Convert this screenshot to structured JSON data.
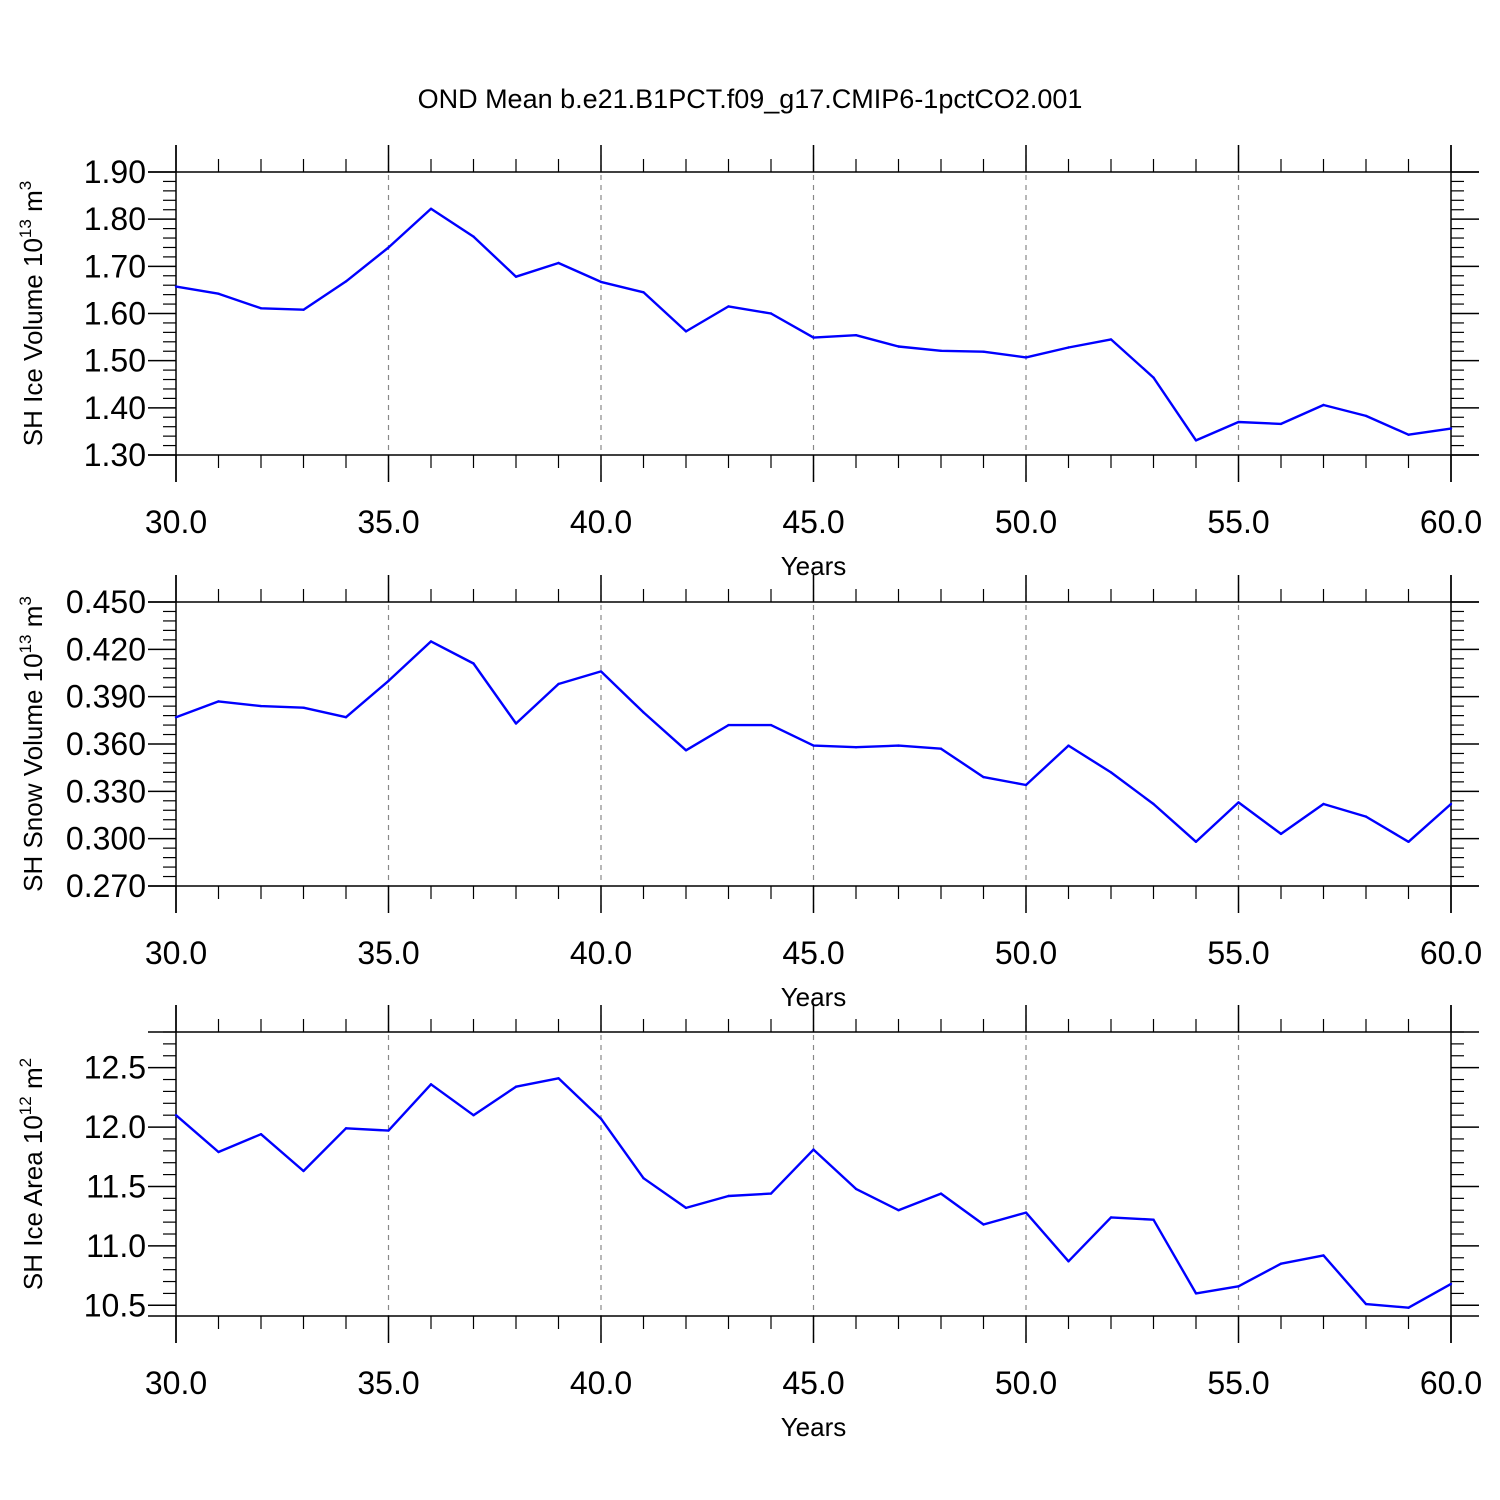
{
  "figure_title": "OND Mean b.e21.B1PCT.f09_g17.CMIP6-1pctCO2.001",
  "colors": {
    "line": "#0000ff",
    "axis": "#000000",
    "grid": "#888888",
    "background": "#ffffff"
  },
  "chart_data": [
    {
      "type": "line",
      "xlabel": "Years",
      "ylabel": {
        "prefix": "SH Ice Volume 10",
        "exp": "13",
        "unit": " m",
        "unit_exp": "3"
      },
      "xlim": [
        30,
        60
      ],
      "ylim": [
        1.3,
        1.9
      ],
      "xticks": [
        30,
        35,
        40,
        45,
        50,
        55,
        60
      ],
      "xtick_labels": [
        "30.0",
        "35.0",
        "40.0",
        "45.0",
        "50.0",
        "55.0",
        "60.0"
      ],
      "yticks": [
        1.3,
        1.4,
        1.5,
        1.6,
        1.7,
        1.8,
        1.9
      ],
      "ytick_labels": [
        "1.30",
        "1.40",
        "1.50",
        "1.60",
        "1.70",
        "1.80",
        "1.90"
      ],
      "grid": "vertical dashed at major x ticks",
      "series": [
        {
          "x": [
            30,
            31,
            32,
            33,
            34,
            35,
            36,
            37,
            38,
            39,
            40,
            41,
            42,
            43,
            44,
            45,
            46,
            47,
            48,
            49,
            50,
            51,
            52,
            53,
            54,
            55,
            56,
            57,
            58,
            59,
            60
          ],
          "values": [
            1.657,
            1.642,
            1.611,
            1.608,
            1.668,
            1.74,
            1.822,
            1.763,
            1.678,
            1.707,
            1.667,
            1.645,
            1.562,
            1.615,
            1.6,
            1.549,
            1.554,
            1.53,
            1.521,
            1.519,
            1.507,
            1.528,
            1.545,
            1.464,
            1.331,
            1.37,
            1.366,
            1.406,
            1.383,
            1.343,
            1.356
          ]
        }
      ]
    },
    {
      "type": "line",
      "xlabel": "Years",
      "ylabel": {
        "prefix": "SH Snow Volume 10",
        "exp": "13",
        "unit": " m",
        "unit_exp": "3"
      },
      "xlim": [
        30,
        60
      ],
      "ylim": [
        0.27,
        0.45
      ],
      "xticks": [
        30,
        35,
        40,
        45,
        50,
        55,
        60
      ],
      "xtick_labels": [
        "30.0",
        "35.0",
        "40.0",
        "45.0",
        "50.0",
        "55.0",
        "60.0"
      ],
      "yticks": [
        0.27,
        0.3,
        0.33,
        0.36,
        0.39,
        0.42,
        0.45
      ],
      "ytick_labels": [
        "0.270",
        "0.300",
        "0.330",
        "0.360",
        "0.390",
        "0.420",
        "0.450"
      ],
      "grid": "vertical dashed at major x ticks",
      "series": [
        {
          "x": [
            30,
            31,
            32,
            33,
            34,
            35,
            36,
            37,
            38,
            39,
            40,
            41,
            42,
            43,
            44,
            45,
            46,
            47,
            48,
            49,
            50,
            51,
            52,
            53,
            54,
            55,
            56,
            57,
            58,
            59,
            60
          ],
          "values": [
            0.377,
            0.387,
            0.384,
            0.383,
            0.377,
            0.4,
            0.425,
            0.411,
            0.373,
            0.398,
            0.406,
            0.38,
            0.356,
            0.372,
            0.372,
            0.359,
            0.358,
            0.359,
            0.357,
            0.339,
            0.334,
            0.359,
            0.342,
            0.322,
            0.298,
            0.323,
            0.303,
            0.322,
            0.314,
            0.298,
            0.322
          ]
        }
      ]
    },
    {
      "type": "line",
      "xlabel": "Years",
      "ylabel": {
        "prefix": "SH Ice Area 10",
        "exp": "12",
        "unit": " m",
        "unit_exp": "2"
      },
      "xlim": [
        30,
        60
      ],
      "ylim": [
        10.41,
        12.8
      ],
      "xticks": [
        30,
        35,
        40,
        45,
        50,
        55,
        60
      ],
      "xtick_labels": [
        "30.0",
        "35.0",
        "40.0",
        "45.0",
        "50.0",
        "55.0",
        "60.0"
      ],
      "yticks": [
        10.5,
        11.0,
        11.5,
        12.0,
        12.5
      ],
      "ytick_labels": [
        "10.5",
        "11.0",
        "11.5",
        "12.0",
        "12.5"
      ],
      "grid": "vertical dashed at major x ticks",
      "series": [
        {
          "x": [
            30,
            31,
            32,
            33,
            34,
            35,
            36,
            37,
            38,
            39,
            40,
            41,
            42,
            43,
            44,
            45,
            46,
            47,
            48,
            49,
            50,
            51,
            52,
            53,
            54,
            55,
            56,
            57,
            58,
            59,
            60
          ],
          "values": [
            12.1,
            11.79,
            11.94,
            11.63,
            11.99,
            11.97,
            12.36,
            12.1,
            12.34,
            12.41,
            12.07,
            11.57,
            11.32,
            11.42,
            11.44,
            11.81,
            11.48,
            11.3,
            11.44,
            11.18,
            11.28,
            10.87,
            11.24,
            11.22,
            10.6,
            10.66,
            10.85,
            10.92,
            10.51,
            10.48,
            10.68
          ]
        }
      ]
    }
  ]
}
